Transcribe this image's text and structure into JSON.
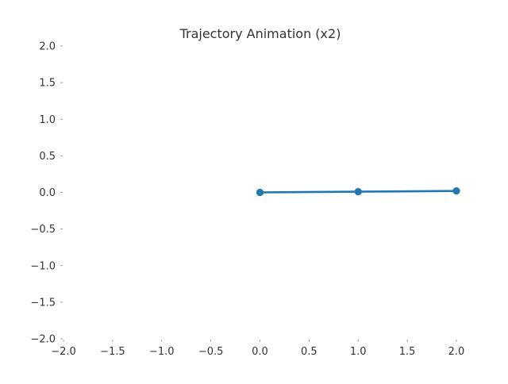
{
  "chart_data": {
    "type": "line",
    "title": "Trajectory Animation (x2)",
    "xlabel": "",
    "ylabel": "",
    "xlim": [
      -2.0,
      2.0
    ],
    "ylim": [
      -2.0,
      2.0
    ],
    "x_ticks": [
      "−2.0",
      "−1.5",
      "−1.0",
      "−0.5",
      "0.0",
      "0.5",
      "1.0",
      "1.5",
      "2.0"
    ],
    "y_ticks": [
      "2.0",
      "1.5",
      "1.0",
      "0.5",
      "0.0",
      "−0.5",
      "−1.0",
      "−1.5",
      "−2.0"
    ],
    "grid": false,
    "series": [
      {
        "color": "#1f77b4",
        "x": [
          0.0,
          1.0,
          2.0
        ],
        "y": [
          0.0,
          0.01,
          0.02
        ]
      }
    ]
  }
}
